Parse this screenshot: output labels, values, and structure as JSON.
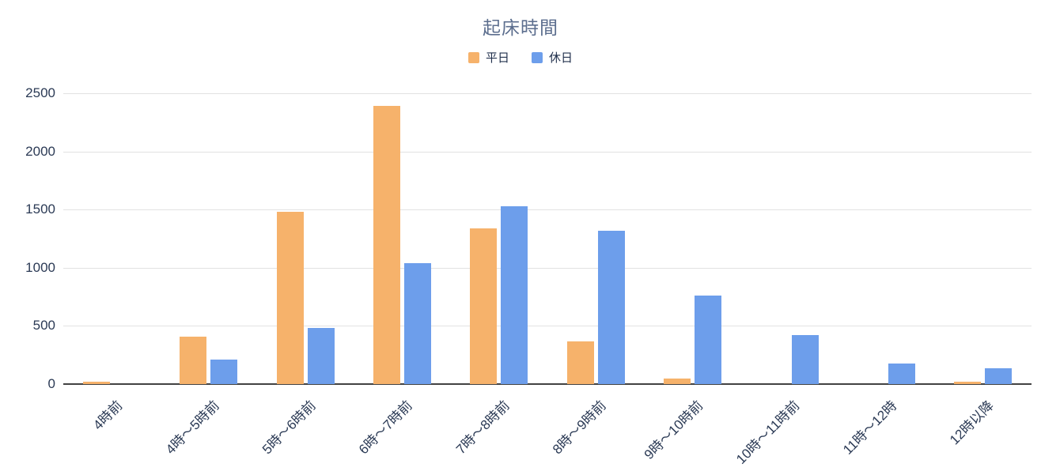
{
  "chart_data": {
    "type": "bar",
    "title": "起床時間",
    "categories": [
      "4時前",
      "4時〜5時前",
      "5時〜6時前",
      "6時〜7時前",
      "7時〜8時前",
      "8時〜9時前",
      "9時〜10時前",
      "10時〜11時前",
      "11時〜12時",
      "12時以降"
    ],
    "series": [
      {
        "id": "weekday",
        "name": "平日",
        "color": "#F6B26B",
        "values": [
          20,
          410,
          1480,
          2390,
          1340,
          370,
          50,
          0,
          0,
          20
        ]
      },
      {
        "id": "holiday",
        "name": "休日",
        "color": "#6D9EEB",
        "values": [
          0,
          210,
          480,
          1040,
          1530,
          1320,
          760,
          420,
          175,
          135
        ]
      }
    ],
    "ylim": [
      0,
      2500
    ],
    "yticks": [
      0,
      500,
      1000,
      1500,
      2000,
      2500
    ],
    "xlabel": "",
    "ylabel": "",
    "grid": true,
    "legend_position": "top",
    "x_label_rotation": -45
  },
  "colors": {
    "background": "#ffffff",
    "title_text": "#5c6e8e",
    "axis_text": "#2b3a55",
    "gridline": "#e2e2e2",
    "baseline": "#424242",
    "series_weekday": "#F6B26B",
    "series_holiday": "#6D9EEB"
  }
}
